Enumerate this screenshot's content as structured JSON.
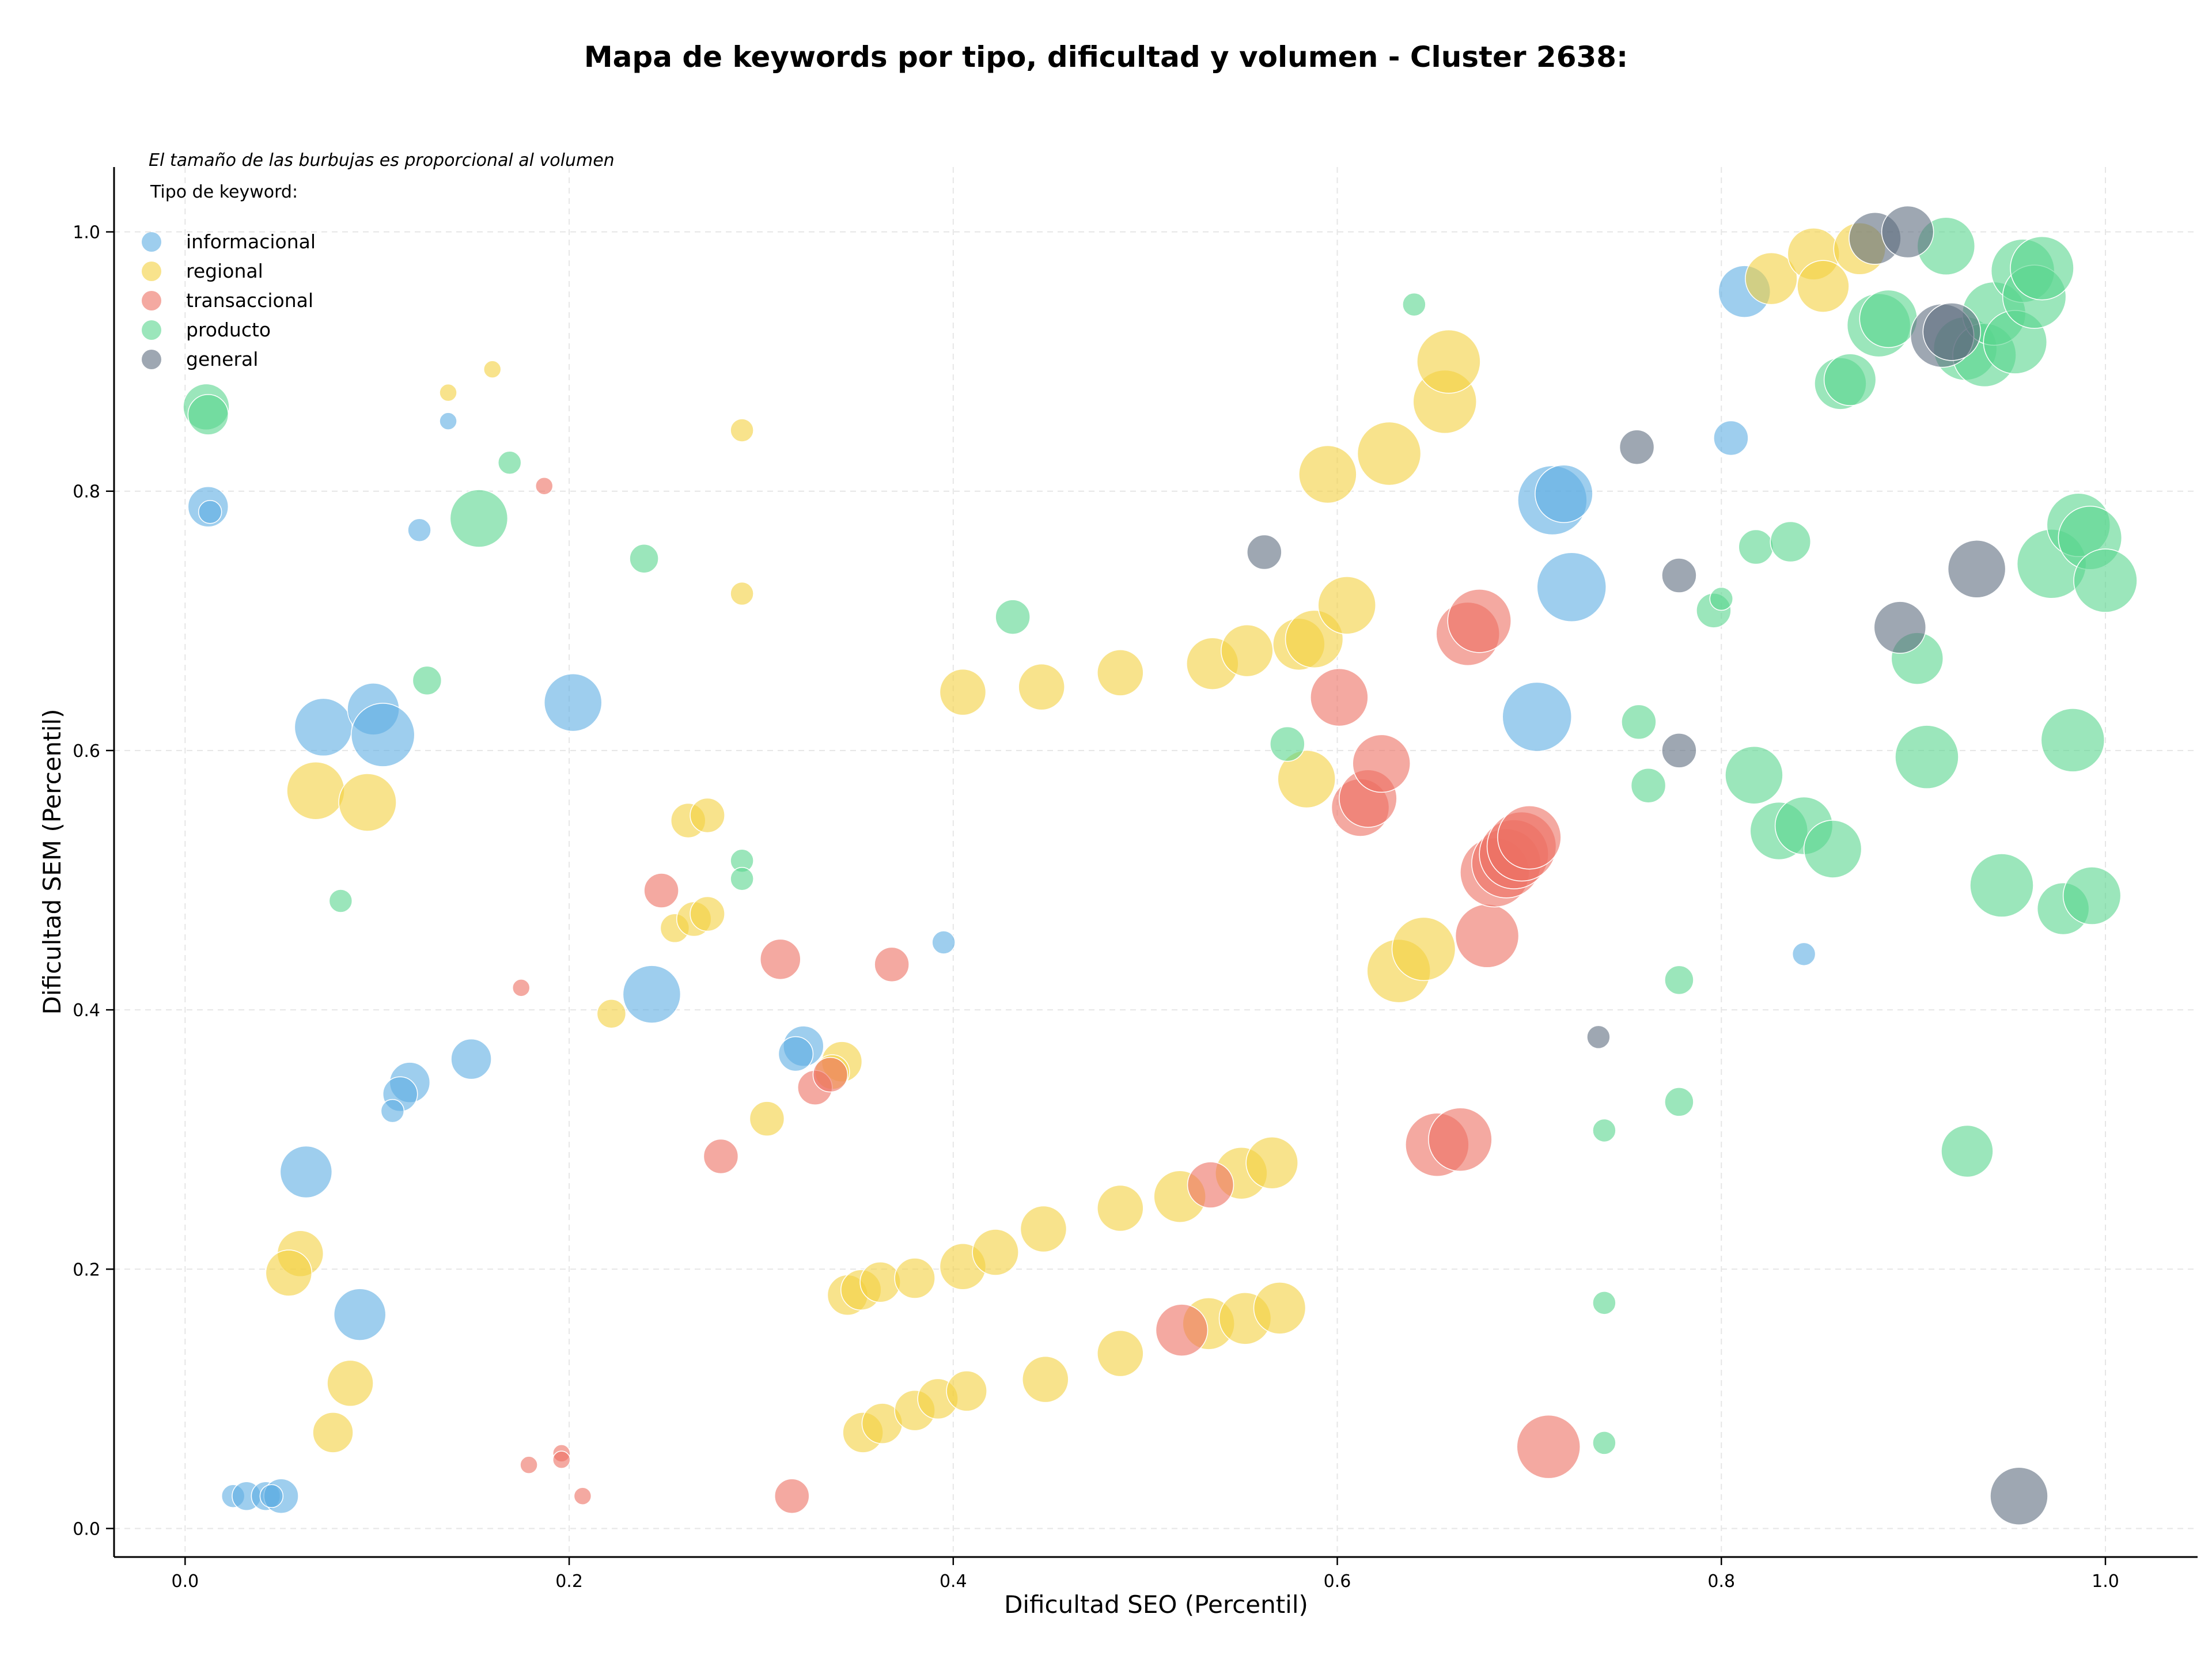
{
  "chart_data": {
    "type": "scatter",
    "title": "Mapa de keywords por tipo, dificultad y volumen - Cluster 2638:",
    "subtitle": "El tamaño de las burbujas es proporcional al volumen",
    "xlabel": "Dificultad SEO (Percentil)",
    "ylabel": "Dificultad SEM (Percentil)",
    "xlim": [
      -0.037,
      1.048
    ],
    "ylim": [
      -0.022,
      1.05
    ],
    "xticks": [
      0.0,
      0.2,
      0.4,
      0.6,
      0.8,
      1.0
    ],
    "xtick_labels": [
      "0.0",
      "0.2",
      "0.4",
      "0.6",
      "0.8",
      "1.0"
    ],
    "yticks": [
      0.0,
      0.2,
      0.4,
      0.6,
      0.8,
      1.0
    ],
    "ytick_labels": [
      "0.0",
      "0.2",
      "0.4",
      "0.6",
      "0.8",
      "1.0"
    ],
    "grid": true,
    "legend_title": "Tipo de keyword:",
    "legend_position": "top-left",
    "series": [
      {
        "name": "informacional",
        "color": "#5DADE2",
        "points": [
          [
            0.012,
            0.788,
            14
          ],
          [
            0.013,
            0.784,
            8
          ],
          [
            0.122,
            0.77,
            8
          ],
          [
            0.137,
            0.854,
            6
          ],
          [
            0.072,
            0.618,
            20
          ],
          [
            0.098,
            0.632,
            18
          ],
          [
            0.103,
            0.612,
            22
          ],
          [
            0.202,
            0.637,
            20
          ],
          [
            0.243,
            0.412,
            20
          ],
          [
            0.149,
            0.362,
            14
          ],
          [
            0.117,
            0.344,
            14
          ],
          [
            0.112,
            0.335,
            12
          ],
          [
            0.108,
            0.322,
            8
          ],
          [
            0.063,
            0.275,
            18
          ],
          [
            0.091,
            0.165,
            18
          ],
          [
            0.025,
            0.025,
            8
          ],
          [
            0.032,
            0.025,
            10
          ],
          [
            0.042,
            0.025,
            10
          ],
          [
            0.05,
            0.025,
            12
          ],
          [
            0.045,
            0.025,
            8
          ],
          [
            0.322,
            0.372,
            14
          ],
          [
            0.318,
            0.366,
            12
          ],
          [
            0.395,
            0.452,
            8
          ],
          [
            0.704,
            0.626,
            24
          ],
          [
            0.712,
            0.793,
            24
          ],
          [
            0.718,
            0.798,
            20
          ],
          [
            0.722,
            0.726,
            24
          ],
          [
            0.812,
            0.954,
            18
          ],
          [
            0.805,
            0.841,
            12
          ],
          [
            0.843,
            0.443,
            8
          ]
        ]
      },
      {
        "name": "regional",
        "color": "#F4D03F",
        "points": [
          [
            0.137,
            0.876,
            6
          ],
          [
            0.16,
            0.894,
            6
          ],
          [
            0.29,
            0.847,
            8
          ],
          [
            0.29,
            0.721,
            8
          ],
          [
            0.068,
            0.569,
            20
          ],
          [
            0.095,
            0.56,
            20
          ],
          [
            0.262,
            0.546,
            12
          ],
          [
            0.272,
            0.55,
            12
          ],
          [
            0.255,
            0.463,
            10
          ],
          [
            0.265,
            0.47,
            12
          ],
          [
            0.272,
            0.474,
            12
          ],
          [
            0.222,
            0.397,
            10
          ],
          [
            0.06,
            0.212,
            16
          ],
          [
            0.054,
            0.197,
            16
          ],
          [
            0.086,
            0.112,
            16
          ],
          [
            0.077,
            0.074,
            14
          ],
          [
            0.303,
            0.316,
            12
          ],
          [
            0.342,
            0.36,
            14
          ],
          [
            0.337,
            0.352,
            12
          ],
          [
            0.345,
            0.18,
            14
          ],
          [
            0.352,
            0.184,
            14
          ],
          [
            0.362,
            0.19,
            14
          ],
          [
            0.38,
            0.193,
            14
          ],
          [
            0.405,
            0.202,
            16
          ],
          [
            0.422,
            0.213,
            16
          ],
          [
            0.447,
            0.231,
            16
          ],
          [
            0.448,
            0.115,
            16
          ],
          [
            0.353,
            0.074,
            14
          ],
          [
            0.363,
            0.081,
            14
          ],
          [
            0.38,
            0.091,
            14
          ],
          [
            0.392,
            0.1,
            14
          ],
          [
            0.407,
            0.106,
            14
          ],
          [
            0.405,
            0.645,
            16
          ],
          [
            0.446,
            0.649,
            16
          ],
          [
            0.487,
            0.66,
            16
          ],
          [
            0.535,
            0.667,
            18
          ],
          [
            0.553,
            0.677,
            18
          ],
          [
            0.58,
            0.682,
            18
          ],
          [
            0.588,
            0.686,
            20
          ],
          [
            0.605,
            0.712,
            20
          ],
          [
            0.584,
            0.578,
            20
          ],
          [
            0.595,
            0.813,
            20
          ],
          [
            0.627,
            0.829,
            22
          ],
          [
            0.656,
            0.869,
            22
          ],
          [
            0.658,
            0.9,
            22
          ],
          [
            0.632,
            0.43,
            22
          ],
          [
            0.645,
            0.447,
            22
          ],
          [
            0.487,
            0.247,
            16
          ],
          [
            0.518,
            0.256,
            18
          ],
          [
            0.55,
            0.274,
            18
          ],
          [
            0.566,
            0.282,
            18
          ],
          [
            0.487,
            0.135,
            16
          ],
          [
            0.533,
            0.158,
            18
          ],
          [
            0.552,
            0.162,
            18
          ],
          [
            0.57,
            0.17,
            18
          ],
          [
            0.826,
            0.964,
            18
          ],
          [
            0.848,
            0.983,
            18
          ],
          [
            0.853,
            0.958,
            18
          ],
          [
            0.872,
            0.987,
            18
          ]
        ]
      },
      {
        "name": "transaccional",
        "color": "#EC7063",
        "points": [
          [
            0.187,
            0.804,
            6
          ],
          [
            0.175,
            0.417,
            6
          ],
          [
            0.248,
            0.492,
            12
          ],
          [
            0.31,
            0.439,
            14
          ],
          [
            0.368,
            0.435,
            12
          ],
          [
            0.279,
            0.287,
            12
          ],
          [
            0.328,
            0.34,
            12
          ],
          [
            0.336,
            0.35,
            12
          ],
          [
            0.179,
            0.049,
            6
          ],
          [
            0.196,
            0.058,
            6
          ],
          [
            0.196,
            0.053,
            6
          ],
          [
            0.207,
            0.025,
            6
          ],
          [
            0.316,
            0.025,
            12
          ],
          [
            0.519,
            0.153,
            18
          ],
          [
            0.534,
            0.265,
            16
          ],
          [
            0.601,
            0.641,
            20
          ],
          [
            0.612,
            0.556,
            20
          ],
          [
            0.616,
            0.563,
            20
          ],
          [
            0.623,
            0.59,
            20
          ],
          [
            0.652,
            0.296,
            22
          ],
          [
            0.664,
            0.3,
            22
          ],
          [
            0.668,
            0.69,
            22
          ],
          [
            0.674,
            0.7,
            22
          ],
          [
            0.678,
            0.457,
            22
          ],
          [
            0.682,
            0.506,
            24
          ],
          [
            0.688,
            0.513,
            24
          ],
          [
            0.692,
            0.52,
            24
          ],
          [
            0.696,
            0.526,
            24
          ],
          [
            0.7,
            0.533,
            22
          ],
          [
            0.71,
            0.063,
            22
          ]
        ]
      },
      {
        "name": "producto",
        "color": "#58D68D",
        "points": [
          [
            0.011,
            0.865,
            16
          ],
          [
            0.012,
            0.859,
            14
          ],
          [
            0.153,
            0.779,
            20
          ],
          [
            0.169,
            0.822,
            8
          ],
          [
            0.239,
            0.748,
            10
          ],
          [
            0.126,
            0.654,
            10
          ],
          [
            0.081,
            0.484,
            8
          ],
          [
            0.29,
            0.515,
            8
          ],
          [
            0.29,
            0.501,
            8
          ],
          [
            0.431,
            0.703,
            12
          ],
          [
            0.574,
            0.605,
            12
          ],
          [
            0.64,
            0.944,
            8
          ],
          [
            0.739,
            0.307,
            8
          ],
          [
            0.739,
            0.174,
            8
          ],
          [
            0.739,
            0.066,
            8
          ],
          [
            0.757,
            0.622,
            12
          ],
          [
            0.762,
            0.573,
            12
          ],
          [
            0.778,
            0.423,
            10
          ],
          [
            0.778,
            0.329,
            10
          ],
          [
            0.796,
            0.708,
            12
          ],
          [
            0.8,
            0.717,
            8
          ],
          [
            0.818,
            0.757,
            12
          ],
          [
            0.836,
            0.761,
            14
          ],
          [
            0.817,
            0.581,
            20
          ],
          [
            0.83,
            0.538,
            20
          ],
          [
            0.843,
            0.542,
            20
          ],
          [
            0.858,
            0.524,
            20
          ],
          [
            0.862,
            0.883,
            18
          ],
          [
            0.867,
            0.886,
            18
          ],
          [
            0.882,
            0.928,
            22
          ],
          [
            0.887,
            0.933,
            20
          ],
          [
            0.902,
            0.671,
            18
          ],
          [
            0.907,
            0.595,
            22
          ],
          [
            0.917,
            0.989,
            20
          ],
          [
            0.928,
            0.291,
            18
          ],
          [
            0.927,
            0.91,
            22
          ],
          [
            0.937,
            0.905,
            22
          ],
          [
            0.942,
            0.937,
            22
          ],
          [
            0.953,
            0.915,
            22
          ],
          [
            0.957,
            0.97,
            22
          ],
          [
            0.963,
            0.95,
            22
          ],
          [
            0.967,
            0.972,
            22
          ],
          [
            0.946,
            0.496,
            22
          ],
          [
            0.972,
            0.744,
            24
          ],
          [
            0.978,
            0.478,
            18
          ],
          [
            0.983,
            0.608,
            22
          ],
          [
            0.986,
            0.774,
            22
          ],
          [
            0.992,
            0.764,
            22
          ],
          [
            0.993,
            0.488,
            20
          ],
          [
            1.0,
            0.731,
            22
          ]
        ]
      },
      {
        "name": "general",
        "color": "#5D6D7E",
        "points": [
          [
            0.562,
            0.753,
            12
          ],
          [
            0.736,
            0.379,
            8
          ],
          [
            0.756,
            0.834,
            12
          ],
          [
            0.778,
            0.735,
            12
          ],
          [
            0.778,
            0.6,
            12
          ],
          [
            0.88,
            0.995,
            18
          ],
          [
            0.897,
            1.0,
            18
          ],
          [
            0.893,
            0.695,
            18
          ],
          [
            0.915,
            0.92,
            22
          ],
          [
            0.92,
            0.923,
            20
          ],
          [
            0.933,
            0.74,
            20
          ],
          [
            0.955,
            0.025,
            20
          ]
        ]
      }
    ]
  }
}
